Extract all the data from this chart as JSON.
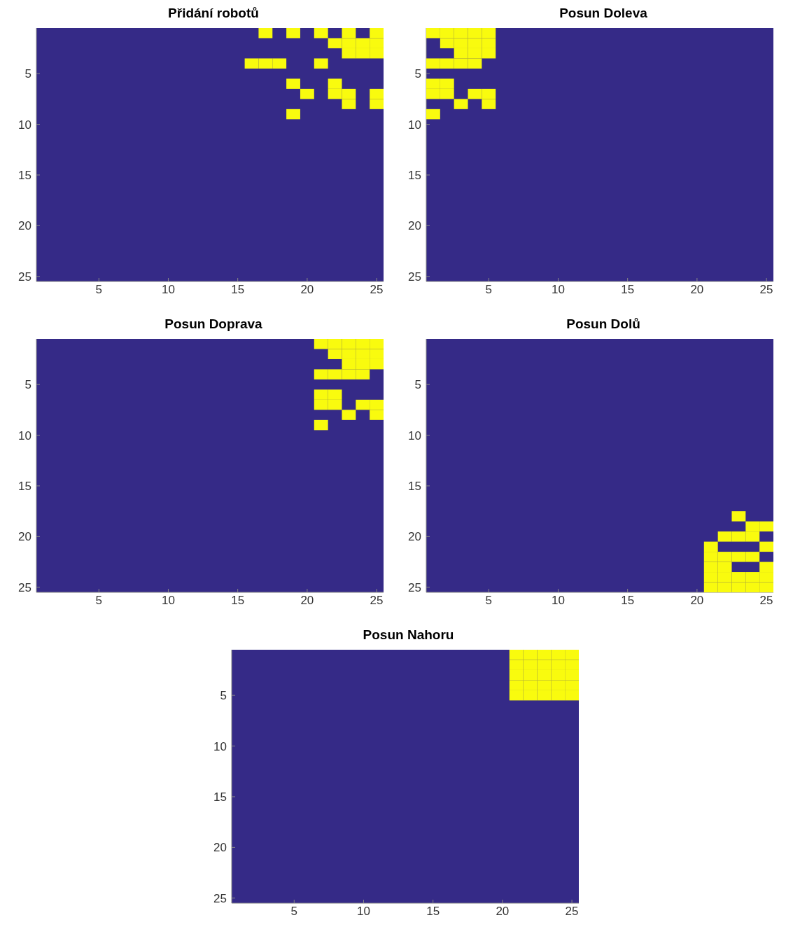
{
  "chart_data": [
    {
      "type": "scatter",
      "title": "Přidání robotů",
      "xlim": [
        0.5,
        25.5
      ],
      "ylim": [
        25.5,
        0.5
      ],
      "xticks": [
        5,
        10,
        15,
        20,
        25
      ],
      "yticks": [
        5,
        10,
        15,
        20,
        25
      ],
      "grid": false,
      "legend": false,
      "marker": "square",
      "series": [
        {
          "color": "#f9fb0e",
          "x": [
            17,
            19,
            21,
            23,
            25,
            22,
            23,
            24,
            25,
            23,
            24,
            25,
            16,
            17,
            18,
            21,
            19,
            22,
            20,
            22,
            23,
            25,
            23,
            25,
            19
          ],
          "values": [
            1,
            1,
            1,
            1,
            1,
            2,
            2,
            2,
            2,
            3,
            3,
            3,
            4,
            4,
            4,
            4,
            6,
            6,
            7,
            7,
            7,
            7,
            8,
            8,
            9
          ]
        }
      ]
    },
    {
      "type": "scatter",
      "title": "Posun Doleva",
      "xlim": [
        0.5,
        25.5
      ],
      "ylim": [
        25.5,
        0.5
      ],
      "xticks": [
        5,
        10,
        15,
        20,
        25
      ],
      "yticks": [
        5,
        10,
        15,
        20,
        25
      ],
      "grid": false,
      "legend": false,
      "marker": "square",
      "series": [
        {
          "color": "#f9fb0e",
          "x": [
            1,
            2,
            3,
            4,
            5,
            2,
            3,
            4,
            5,
            3,
            4,
            5,
            1,
            2,
            3,
            4,
            1,
            2,
            1,
            2,
            4,
            5,
            3,
            5,
            1
          ],
          "values": [
            1,
            1,
            1,
            1,
            1,
            2,
            2,
            2,
            2,
            3,
            3,
            3,
            4,
            4,
            4,
            4,
            6,
            6,
            7,
            7,
            7,
            7,
            8,
            8,
            9
          ]
        }
      ]
    },
    {
      "type": "scatter",
      "title": "Posun Doprava",
      "xlim": [
        0.5,
        25.5
      ],
      "ylim": [
        25.5,
        0.5
      ],
      "xticks": [
        5,
        10,
        15,
        20,
        25
      ],
      "yticks": [
        5,
        10,
        15,
        20,
        25
      ],
      "grid": false,
      "legend": false,
      "marker": "square",
      "series": [
        {
          "color": "#f9fb0e",
          "x": [
            21,
            22,
            23,
            24,
            25,
            22,
            23,
            24,
            25,
            23,
            24,
            25,
            21,
            22,
            23,
            24,
            21,
            22,
            21,
            22,
            24,
            25,
            23,
            25,
            21
          ],
          "values": [
            1,
            1,
            1,
            1,
            1,
            2,
            2,
            2,
            2,
            3,
            3,
            3,
            4,
            4,
            4,
            4,
            6,
            6,
            7,
            7,
            7,
            7,
            8,
            8,
            9
          ]
        }
      ]
    },
    {
      "type": "scatter",
      "title": "Posun Dolů",
      "xlim": [
        0.5,
        25.5
      ],
      "ylim": [
        25.5,
        0.5
      ],
      "xticks": [
        5,
        10,
        15,
        20,
        25
      ],
      "yticks": [
        5,
        10,
        15,
        20,
        25
      ],
      "grid": false,
      "legend": false,
      "marker": "square",
      "series": [
        {
          "color": "#f9fb0e",
          "x": [
            23,
            24,
            25,
            22,
            23,
            24,
            21,
            25,
            21,
            22,
            23,
            24,
            21,
            22,
            25,
            21,
            22,
            23,
            24,
            25,
            21,
            22,
            23,
            24,
            25
          ],
          "values": [
            18,
            19,
            19,
            20,
            20,
            20,
            21,
            21,
            22,
            22,
            22,
            22,
            23,
            23,
            23,
            24,
            24,
            24,
            24,
            24,
            25,
            25,
            25,
            25,
            25
          ]
        }
      ]
    },
    {
      "type": "scatter",
      "title": "Posun Nahoru",
      "xlim": [
        0.5,
        25.5
      ],
      "ylim": [
        25.5,
        0.5
      ],
      "xticks": [
        5,
        10,
        15,
        20,
        25
      ],
      "yticks": [
        5,
        10,
        15,
        20,
        25
      ],
      "grid": false,
      "legend": false,
      "marker": "square",
      "series": [
        {
          "color": "#f9fb0e",
          "x": [
            21,
            22,
            23,
            24,
            25,
            21,
            22,
            23,
            24,
            25,
            21,
            22,
            23,
            24,
            25,
            21,
            22,
            23,
            24,
            25,
            21,
            22,
            23,
            24,
            25
          ],
          "values": [
            1,
            1,
            1,
            1,
            1,
            2,
            2,
            2,
            2,
            2,
            3,
            3,
            3,
            3,
            3,
            4,
            4,
            4,
            4,
            4,
            5,
            5,
            5,
            5,
            5
          ]
        }
      ]
    }
  ]
}
